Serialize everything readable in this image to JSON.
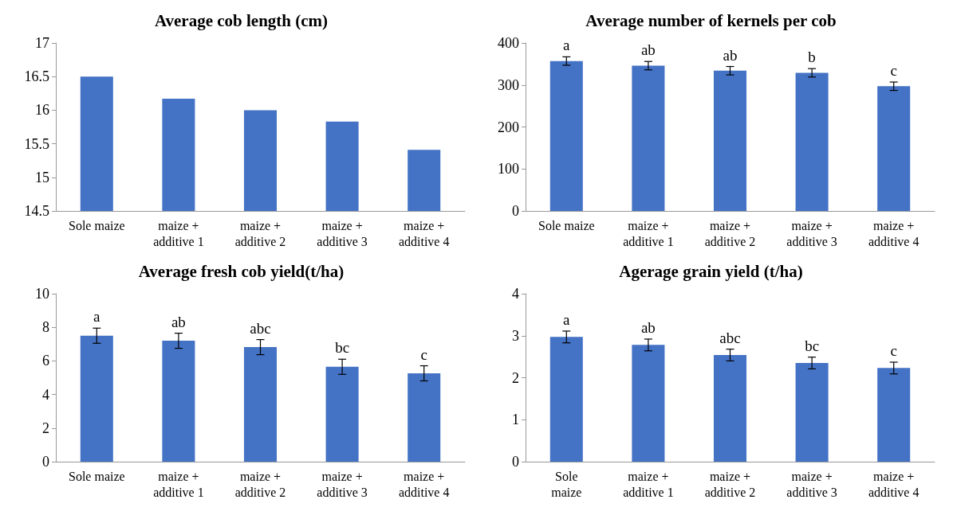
{
  "chart_data": [
    {
      "type": "bar",
      "title": "Average cob length (cm)",
      "categories": [
        "Sole maize",
        "maize +\nadditive 1",
        "maize +\nadditive 2",
        "maize +\nadditive 3",
        "maize +\nadditive 4"
      ],
      "values": [
        16.5,
        16.17,
        16.0,
        15.83,
        15.41
      ],
      "color": "#4472c4",
      "ylim": [
        14.5,
        17
      ],
      "yticks": [
        14.5,
        15,
        15.5,
        16,
        16.5,
        17
      ]
    },
    {
      "type": "bar",
      "title": "Average number of kernels per cob",
      "categories": [
        "Sole maize",
        "maize +\nadditive 1",
        "maize +\nadditive 2",
        "maize +\nadditive 3",
        "maize +\nadditive 4"
      ],
      "values": [
        357,
        346,
        334,
        329,
        297
      ],
      "errors": [
        10,
        10,
        10,
        10,
        10
      ],
      "color": "#4472c4",
      "ylim": [
        0,
        400
      ],
      "yticks": [
        0,
        100,
        200,
        300,
        400
      ],
      "annotations": [
        {
          "text": "a",
          "x": "Sole maize",
          "y": 367
        },
        {
          "text": "ab",
          "x": "maize +\nadditive 1",
          "y": 356
        },
        {
          "text": "ab",
          "x": "maize +\nadditive 2",
          "y": 344
        },
        {
          "text": "b",
          "x": "maize +\nadditive 3",
          "y": 339
        },
        {
          "text": "c",
          "x": "maize +\nadditive 4",
          "y": 307
        }
      ]
    },
    {
      "type": "bar",
      "title": "Average fresh cob yield(t/ha)",
      "categories": [
        "Sole maize",
        "maize +\nadditive 1",
        "maize +\nadditive 2",
        "maize +\nadditive 3",
        "maize +\nadditive 4"
      ],
      "values": [
        7.5,
        7.2,
        6.82,
        5.65,
        5.26
      ],
      "errors": [
        0.45,
        0.45,
        0.45,
        0.45,
        0.45
      ],
      "color": "#4472c4",
      "ylim": [
        0,
        10
      ],
      "yticks": [
        0,
        2,
        4,
        6,
        8,
        10
      ],
      "annotations": [
        {
          "text": "a",
          "x": "Sole maize",
          "y": 7.95
        },
        {
          "text": "ab",
          "x": "maize +\nadditive 1",
          "y": 7.65
        },
        {
          "text": "abc",
          "x": "maize +\nadditive 2",
          "y": 7.27
        },
        {
          "text": "bc",
          "x": "maize +\nadditive 3",
          "y": 6.1
        },
        {
          "text": "c",
          "x": "maize +\nadditive 4",
          "y": 5.71
        }
      ]
    },
    {
      "type": "bar",
      "title": "Agerage grain yield (t/ha)",
      "categories": [
        "Sole\nmaize",
        "maize +\nadditive 1",
        "maize +\nadditive 2",
        "maize +\nadditive 3",
        "maize +\nadditive 4"
      ],
      "values": [
        2.97,
        2.78,
        2.54,
        2.35,
        2.23
      ],
      "errors": [
        0.14,
        0.14,
        0.14,
        0.14,
        0.14
      ],
      "color": "#4472c4",
      "ylim": [
        0,
        4
      ],
      "yticks": [
        0,
        1,
        2,
        3,
        4
      ],
      "annotations": [
        {
          "text": "a",
          "x": "Sole\nmaize",
          "y": 3.11
        },
        {
          "text": "ab",
          "x": "maize +\nadditive 1",
          "y": 2.92
        },
        {
          "text": "abc",
          "x": "maize +\nadditive 2",
          "y": 2.68
        },
        {
          "text": "bc",
          "x": "maize +\nadditive 3",
          "y": 2.49
        },
        {
          "text": "c",
          "x": "maize +\nadditive 4",
          "y": 2.37
        }
      ]
    }
  ]
}
